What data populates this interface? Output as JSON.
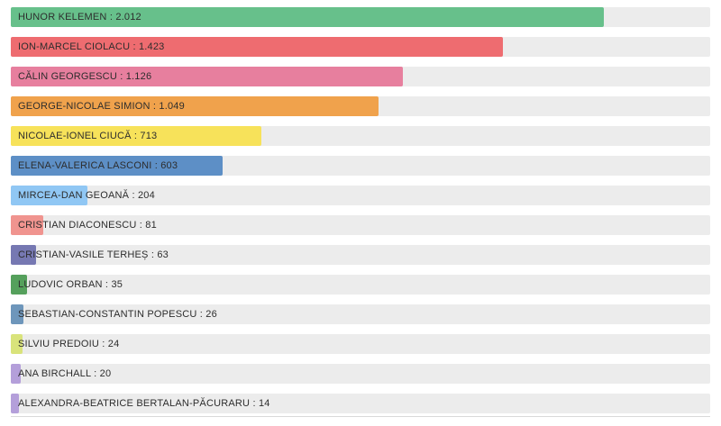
{
  "chart_data": {
    "type": "bar",
    "orientation": "horizontal",
    "title": "",
    "xlabel": "",
    "ylabel": "",
    "xlim": [
      0,
      2012
    ],
    "grid": false,
    "legend": false,
    "track_color": "#ececec",
    "label_color": "#2d2d2d",
    "categories": [
      "HUNOR KELEMEN",
      "ION-MARCEL CIOLACU",
      "CĂLIN GEORGESCU",
      "GEORGE-NICOLAE SIMION",
      "NICOLAE-IONEL CIUCĂ",
      "ELENA-VALERICA LASCONI",
      "MIRCEA-DAN GEOANĂ",
      "CRISTIAN DIACONESCU",
      "CRISTIAN-VASILE TERHEȘ",
      "LUDOVIC ORBAN",
      "SEBASTIAN-CONSTANTIN POPESCU",
      "SILVIU PREDOIU",
      "ANA BIRCHALL",
      "ALEXANDRA-BEATRICE BERTALAN-PĂCURARU"
    ],
    "values": [
      2012,
      1423,
      1126,
      1049,
      713,
      603,
      204,
      81,
      63,
      35,
      26,
      24,
      20,
      14
    ],
    "value_labels": [
      "2.012",
      "1.423",
      "1.126",
      "1.049",
      "713",
      "603",
      "204",
      "81",
      "63",
      "35",
      "26",
      "24",
      "20",
      "14"
    ],
    "bar_labels": [
      "HUNOR KELEMEN : 2.012",
      "ION-MARCEL CIOLACU : 1.423",
      "CĂLIN GEORGESCU : 1.126",
      "GEORGE-NICOLAE SIMION : 1.049",
      "NICOLAE-IONEL CIUCĂ : 713",
      "ELENA-VALERICA LASCONI : 603",
      "MIRCEA-DAN GEOANĂ : 204",
      "CRISTIAN DIACONESCU : 81",
      "CRISTIAN-VASILE TERHEȘ : 63",
      "LUDOVIC ORBAN : 35",
      "SEBASTIAN-CONSTANTIN POPESCU : 26",
      "SILVIU PREDOIU : 24",
      "ANA BIRCHALL : 20",
      "ALEXANDRA-BEATRICE BERTALAN-PĂCURARU : 14"
    ],
    "colors": [
      "#67c08b",
      "#ee6c70",
      "#e77f9e",
      "#f0a24c",
      "#f7e25a",
      "#5d8fc6",
      "#90c7f4",
      "#f0948f",
      "#7678b2",
      "#55a05c",
      "#6e96bb",
      "#d9e37b",
      "#b49fda",
      "#b49fda"
    ],
    "bar_percents": [
      84.8,
      70.4,
      56.1,
      52.6,
      35.8,
      30.3,
      11.0,
      4.6,
      3.6,
      2.3,
      1.8,
      1.7,
      1.4,
      1.2
    ]
  }
}
